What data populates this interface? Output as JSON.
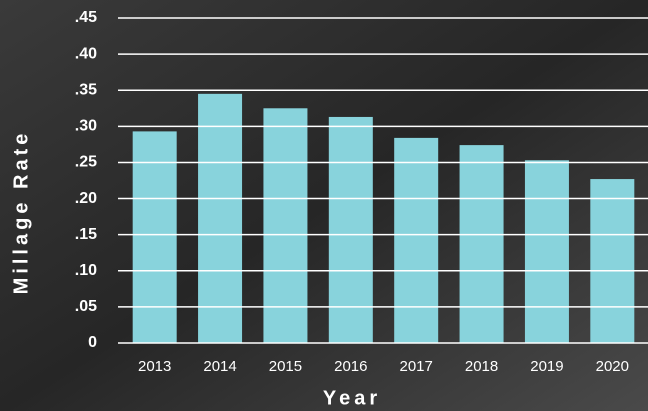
{
  "chart_data": {
    "type": "bar",
    "x_label": "Year",
    "y_label": "Millage Rate",
    "categories": [
      "2013",
      "2014",
      "2015",
      "2016",
      "2017",
      "2018",
      "2019",
      "2020"
    ],
    "values": [
      0.293,
      0.345,
      0.325,
      0.313,
      0.284,
      0.274,
      0.253,
      0.227
    ],
    "color": "#88d3dc",
    "ylim": [
      0,
      0.45
    ],
    "yticks": [
      0,
      {
        "value": 0.05,
        "label": ".05"
      },
      {
        "value": 0.1,
        "label": ".10"
      },
      {
        "value": 0.15,
        "label": ".15"
      },
      {
        "value": 0.2,
        "label": ".20"
      },
      {
        "value": 0.25,
        "label": ".25"
      },
      {
        "value": 0.3,
        "label": ".30"
      },
      {
        "value": 0.35,
        "label": ".35"
      },
      {
        "value": 0.4,
        "label": ".40"
      },
      {
        "value": 0.45,
        "label": ".45"
      }
    ],
    "grid": true
  }
}
